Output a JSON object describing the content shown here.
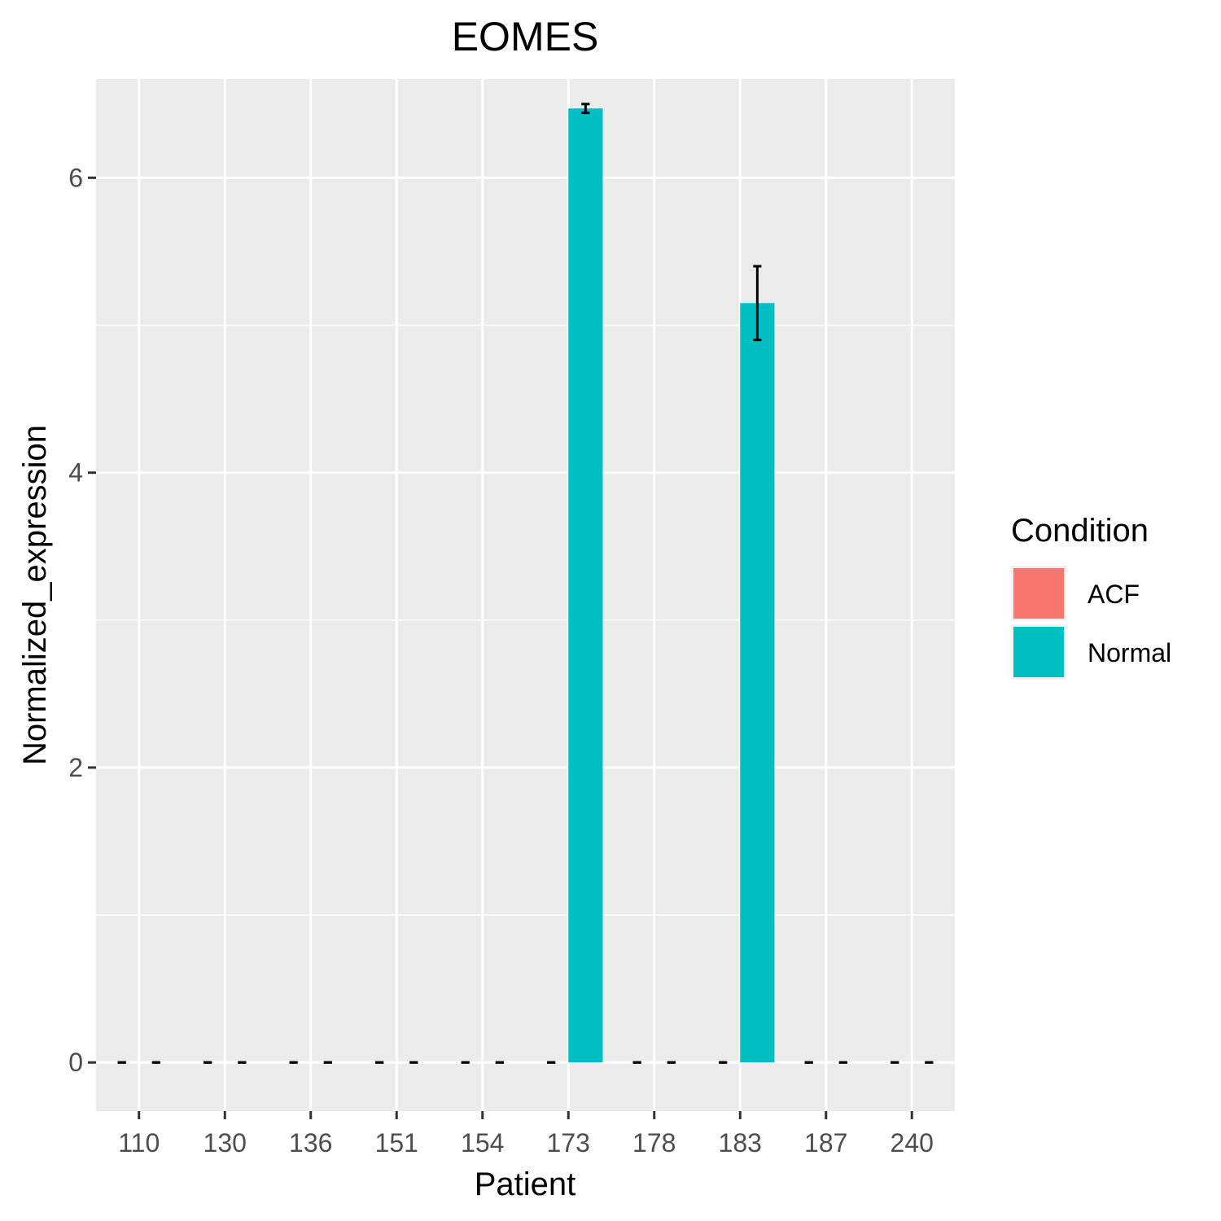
{
  "chart_data": {
    "type": "bar",
    "title": "EOMES",
    "xlabel": "Patient",
    "ylabel": "Normalized_expression",
    "categories": [
      "110",
      "130",
      "136",
      "151",
      "154",
      "173",
      "178",
      "183",
      "187",
      "240"
    ],
    "ylim": [
      -0.33,
      6.67
    ],
    "yticks": [
      0,
      2,
      4,
      6
    ],
    "grid": true,
    "legend": {
      "title": "Condition",
      "position": "right",
      "entries": [
        {
          "label": "ACF",
          "color": "#F8766D"
        },
        {
          "label": "Normal",
          "color": "#00BFC4"
        }
      ]
    },
    "series": [
      {
        "name": "ACF",
        "color": "#F8766D",
        "values": [
          0,
          0,
          0,
          0,
          0,
          0,
          0,
          0,
          0,
          0
        ],
        "error": [
          0,
          0,
          0,
          0,
          0,
          0,
          0,
          0,
          0,
          0
        ]
      },
      {
        "name": "Normal",
        "color": "#00BFC4",
        "values": [
          0,
          0,
          0,
          0,
          0,
          6.47,
          0,
          5.15,
          0,
          0
        ],
        "error": [
          0,
          0,
          0,
          0,
          0,
          0.03,
          0,
          0.25,
          0,
          0
        ]
      }
    ]
  }
}
